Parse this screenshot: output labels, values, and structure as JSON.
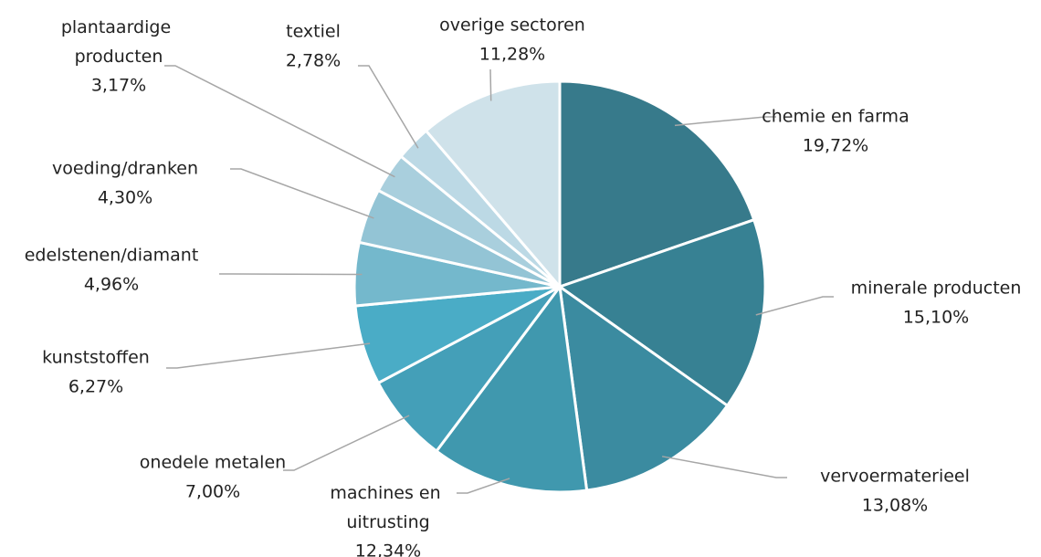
{
  "chart_data": {
    "type": "pie",
    "categories": [
      "chemie en farma",
      "minerale producten",
      "vervoermaterieel",
      "machines en uitrusting",
      "onedele metalen",
      "kunststoffen",
      "edelstenen/diamant",
      "voeding/dranken",
      "plantaardige producten",
      "textiel",
      "overige sectoren"
    ],
    "values": [
      19.72,
      15.1,
      13.08,
      12.34,
      7.0,
      6.27,
      4.96,
      4.3,
      3.17,
      2.78,
      11.28
    ],
    "value_labels": [
      "19,72%",
      "15,10%",
      "13,08%",
      "12,34%",
      "7,00%",
      "6,27%",
      "4,96%",
      "4,30%",
      "3,17%",
      "2,78%",
      "11,28%"
    ],
    "colors": [
      "#377a8b",
      "#378193",
      "#3b8ba0",
      "#4098ae",
      "#449fb8",
      "#4aacc6",
      "#74b8cc",
      "#93c4d5",
      "#a9cfdd",
      "#bcd9e5",
      "#cfe2ea"
    ]
  }
}
